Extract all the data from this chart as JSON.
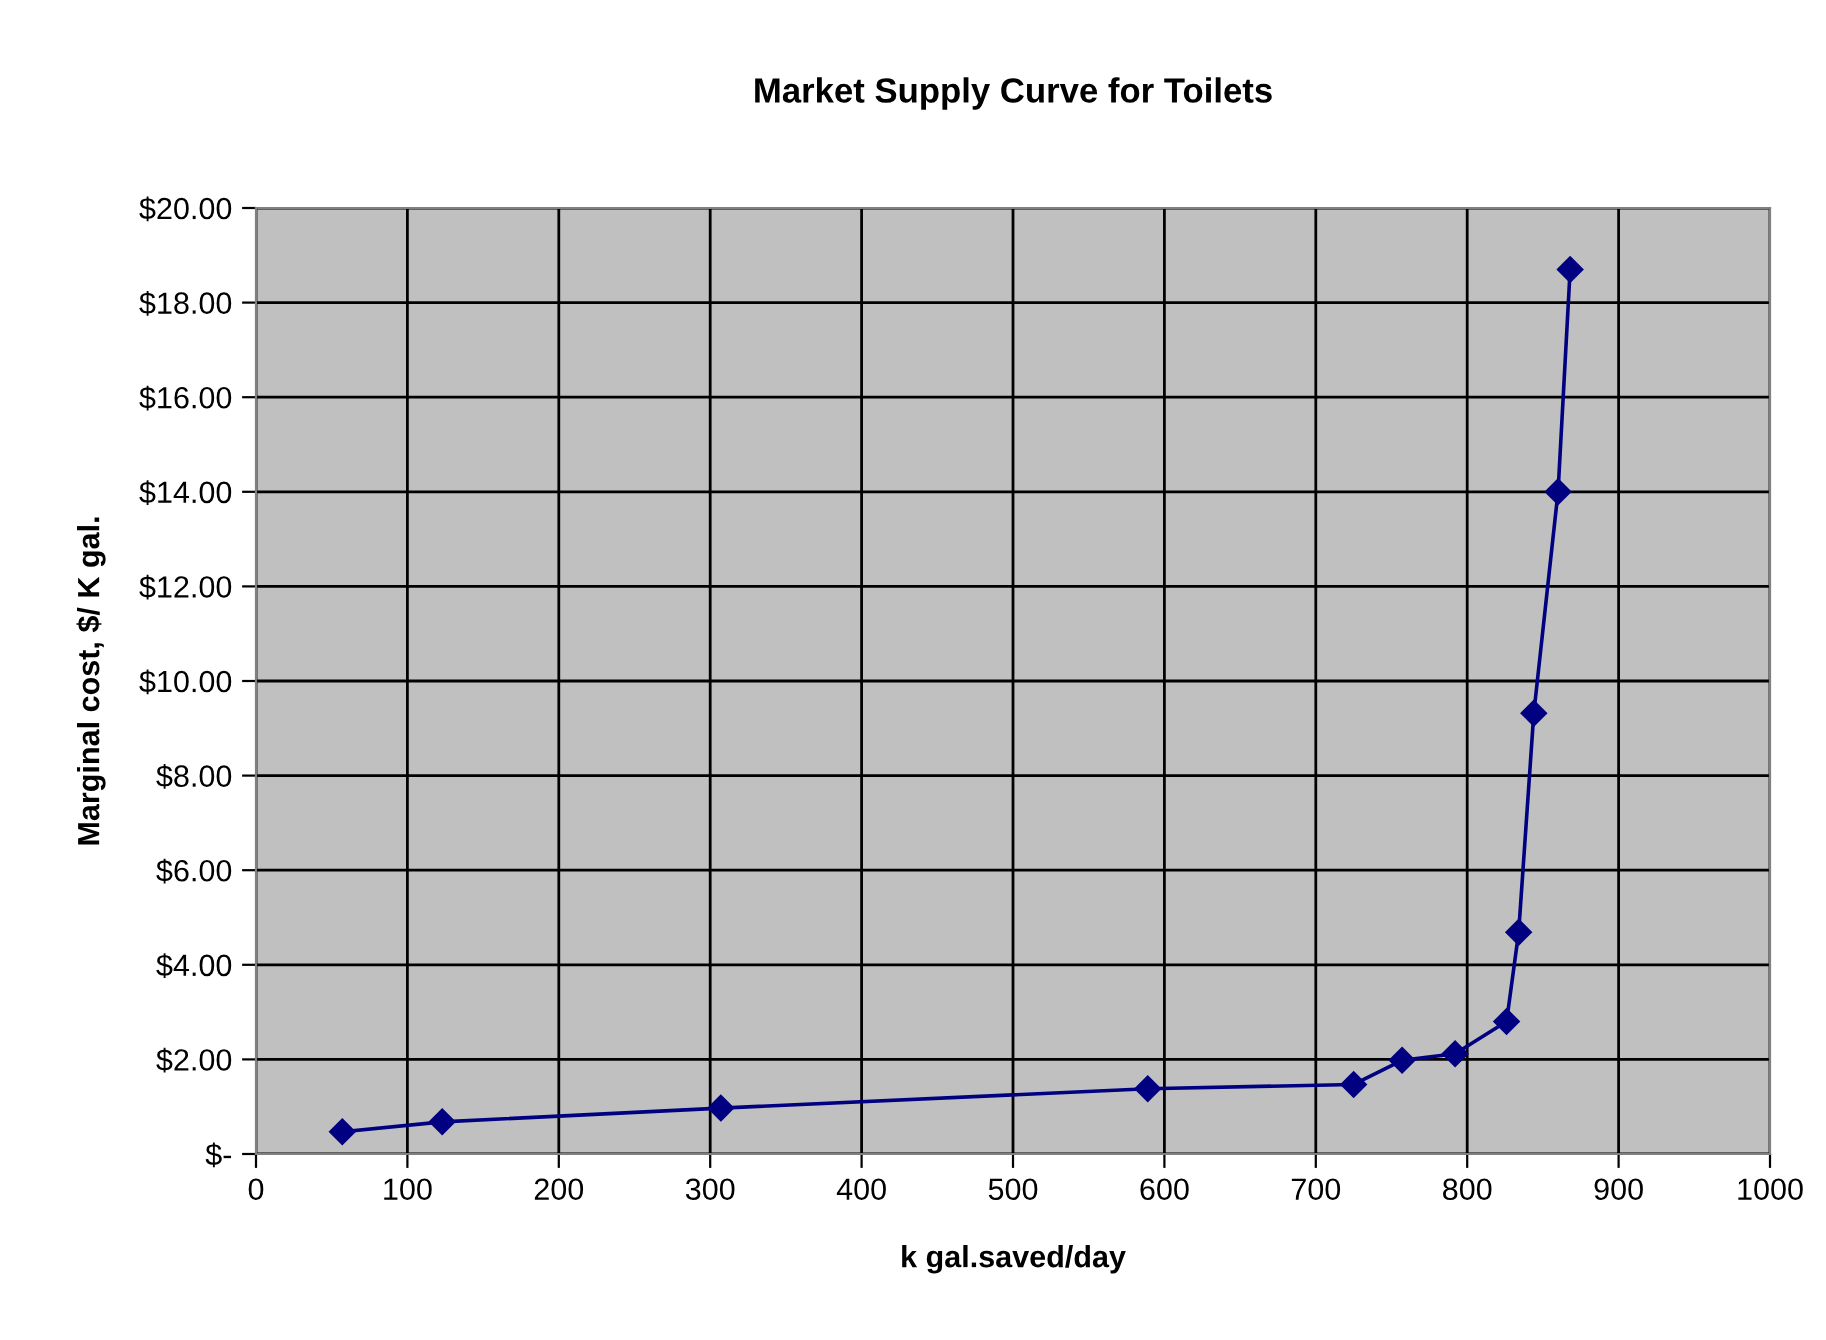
{
  "chart_data": {
    "type": "line",
    "title": "Market Supply Curve for Toilets",
    "xlabel": "k gal.saved/day",
    "ylabel": "Marginal cost, $/ K gal.",
    "series": [
      {
        "color": "#000080",
        "x": [
          57,
          123,
          307,
          589,
          725,
          757,
          792,
          826,
          834,
          844,
          860,
          868
        ],
        "values": [
          0.47,
          0.68,
          0.97,
          1.38,
          1.47,
          1.98,
          2.12,
          2.8,
          4.69,
          9.32,
          14.0,
          18.7
        ]
      }
    ],
    "marker": "diamond",
    "line_style": "solid",
    "grid": true,
    "xlim": [
      0,
      1000
    ],
    "xticks": [
      0,
      100,
      200,
      300,
      400,
      500,
      600,
      700,
      800,
      900,
      1000
    ],
    "ylim": [
      0,
      20
    ],
    "yticks": [
      {
        "value": 0,
        "label": "$-"
      },
      {
        "value": 2,
        "label": "$2.00"
      },
      {
        "value": 4,
        "label": "$4.00"
      },
      {
        "value": 6,
        "label": "$6.00"
      },
      {
        "value": 8,
        "label": "$8.00"
      },
      {
        "value": 10,
        "label": "$10.00"
      },
      {
        "value": 12,
        "label": "$12.00"
      },
      {
        "value": 14,
        "label": "$14.00"
      },
      {
        "value": 16,
        "label": "$16.00"
      },
      {
        "value": 18,
        "label": "$18.00"
      },
      {
        "value": 20,
        "label": "$20.00"
      }
    ]
  }
}
